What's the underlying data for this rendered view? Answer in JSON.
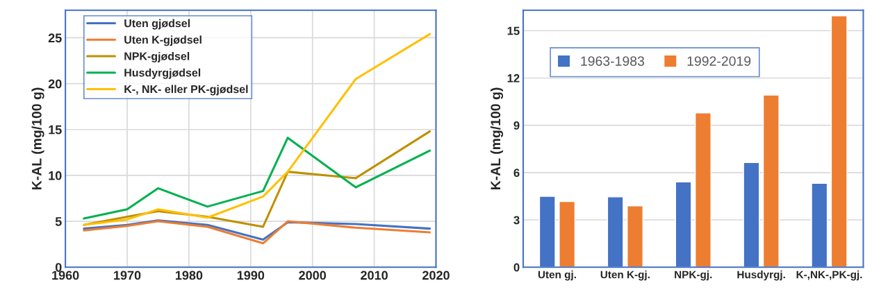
{
  "chart_data": [
    {
      "type": "line",
      "ylabel": "K-AL (mg/100 g)",
      "x": [
        1963,
        1970,
        1975,
        1983,
        1992,
        1996,
        2007,
        2019
      ],
      "xlim": [
        1960,
        2020
      ],
      "xticks": [
        1960,
        1970,
        1980,
        1990,
        2000,
        2010,
        2020
      ],
      "ylim": [
        0,
        28
      ],
      "yticks": [
        0,
        5,
        10,
        15,
        20,
        25
      ],
      "grid": true,
      "legend": "top left",
      "marker": "none",
      "line_style": "solid",
      "series": [
        {
          "name": "Uten gjødsel",
          "color": "#4472c4",
          "values": [
            4.2,
            4.6,
            5.1,
            4.6,
            3.0,
            4.9,
            4.7,
            4.2
          ]
        },
        {
          "name": "Uten K-gjødsel",
          "color": "#ed7d31",
          "values": [
            4.0,
            4.5,
            5.0,
            4.4,
            2.6,
            5.0,
            4.3,
            3.8
          ]
        },
        {
          "name": "NPK-gjødsel",
          "color": "#bf9000",
          "values": [
            4.6,
            5.5,
            6.1,
            5.5,
            4.4,
            10.4,
            9.7,
            14.8
          ]
        },
        {
          "name": "Husdyrgjødsel",
          "color": "#00b050",
          "values": [
            5.3,
            6.3,
            8.6,
            6.6,
            8.3,
            14.1,
            8.7,
            12.7
          ]
        },
        {
          "name": "K-, NK- eller PK-gjødsel",
          "color": "#ffc000",
          "values": [
            4.6,
            5.2,
            6.3,
            5.4,
            7.7,
            10.4,
            20.5,
            25.4
          ]
        }
      ]
    },
    {
      "type": "bar",
      "ylabel": "K-AL (mg/100 g)",
      "categories": [
        "Uten gj.",
        "Uten K-gj.",
        "NPK-gj.",
        "Husdyrgj.",
        "K-,NK-,PK-gj."
      ],
      "ylim": [
        0,
        16.3
      ],
      "yticks": [
        0,
        3,
        6,
        9,
        12,
        15
      ],
      "grid": "y",
      "legend": "top left",
      "series": [
        {
          "name": "1963-1983",
          "color": "#4472c4",
          "values": [
            4.5,
            4.46,
            5.41,
            6.64,
            5.32
          ]
        },
        {
          "name": "1992-2019",
          "color": "#ed7d31",
          "values": [
            4.16,
            3.89,
            9.79,
            10.92,
            15.94
          ]
        }
      ]
    }
  ]
}
